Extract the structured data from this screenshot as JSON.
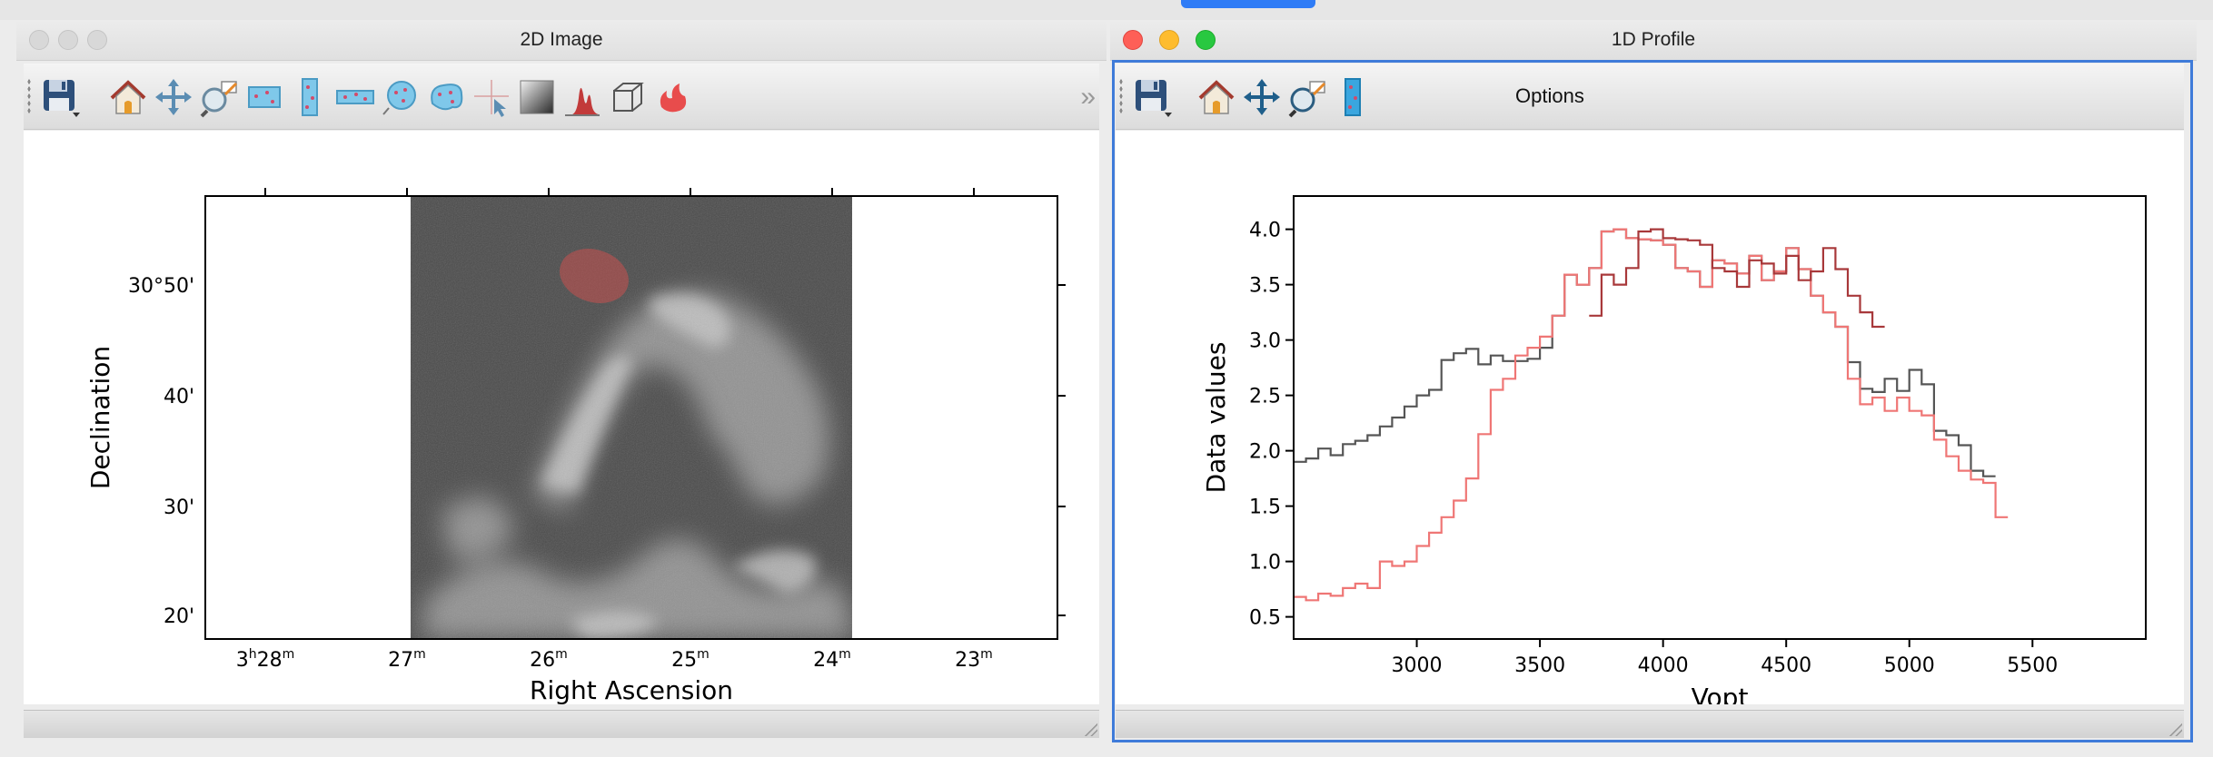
{
  "left_window": {
    "title": "2D Image",
    "toolbar_icons": [
      "save-icon",
      "home-icon",
      "pan-icon",
      "zoom-icon",
      "rectangle-roi-icon",
      "vertical-roi-icon",
      "horizontal-roi-icon",
      "circle-roi-icon",
      "polygon-roi-icon",
      "crosshair-icon",
      "contrast-icon",
      "histogram-icon",
      "cube-icon",
      "lasso-icon"
    ],
    "overflow_label": "»",
    "image_plot": {
      "xlabel": "Right Ascension",
      "ylabel": "Declination",
      "x_ticks": [
        {
          "h": "3",
          "hsup": "h",
          "m": "28",
          "msup": "m"
        },
        {
          "h": "",
          "hsup": "",
          "m": "27",
          "msup": "m"
        },
        {
          "h": "",
          "hsup": "",
          "m": "26",
          "msup": "m"
        },
        {
          "h": "",
          "hsup": "",
          "m": "25",
          "msup": "m"
        },
        {
          "h": "",
          "hsup": "",
          "m": "24",
          "msup": "m"
        },
        {
          "h": "",
          "hsup": "",
          "m": "23",
          "msup": "m"
        }
      ],
      "y_ticks": [
        "30°50'",
        "40'",
        "30'",
        "20'"
      ],
      "selection_color": "#e0504e"
    }
  },
  "right_window": {
    "title": "1D Profile",
    "toolbar_icons": [
      "save-icon",
      "home-icon",
      "pan-icon",
      "zoom-icon",
      "vertical-roi-icon"
    ],
    "options_label": "Options"
  },
  "chart_data": {
    "type": "line",
    "xlabel": "Vopt",
    "ylabel": "Data values",
    "xlim": [
      2500,
      5960
    ],
    "ylim": [
      0.3,
      4.3
    ],
    "x_ticks": [
      3000,
      3500,
      4000,
      4500,
      5000,
      5500
    ],
    "y_ticks": [
      "0.5",
      "1.0",
      "1.5",
      "2.0",
      "2.5",
      "3.0",
      "3.5",
      "4.0"
    ],
    "step_start": 2500,
    "step_width": 50,
    "series": [
      {
        "color": "#555555",
        "values": [
          1.9,
          1.93,
          2.02,
          1.96,
          2.06,
          2.09,
          2.14,
          2.22,
          2.3,
          2.4,
          2.5,
          2.55,
          2.82,
          2.88,
          2.92,
          2.78,
          2.86,
          2.81,
          2.81,
          2.83,
          2.93,
          3.22,
          3.59,
          3.5,
          3.65,
          3.98,
          4.0,
          3.92,
          3.91,
          3.9,
          3.86,
          3.65,
          3.62,
          3.48,
          3.72,
          3.69,
          3.6,
          3.76,
          3.54,
          3.62,
          3.83,
          3.64,
          3.4,
          3.25,
          3.12,
          2.8,
          2.56,
          2.53,
          2.65,
          2.54,
          2.73,
          2.6,
          2.18,
          2.14,
          2.05,
          1.82,
          1.77
        ]
      },
      {
        "color": "#ef7675",
        "values": [
          0.68,
          0.65,
          0.71,
          0.69,
          0.76,
          0.8,
          0.76,
          1.0,
          0.96,
          1.0,
          1.14,
          1.26,
          1.4,
          1.55,
          1.75,
          2.15,
          2.55,
          2.65,
          2.86,
          2.93,
          3.03,
          3.22,
          3.59,
          3.5,
          3.65,
          3.98,
          4.0,
          3.92,
          3.91,
          3.9,
          3.86,
          3.65,
          3.62,
          3.48,
          3.72,
          3.69,
          3.6,
          3.76,
          3.54,
          3.62,
          3.83,
          3.64,
          3.4,
          3.25,
          3.12,
          2.65,
          2.42,
          2.48,
          2.36,
          2.48,
          2.36,
          2.32,
          2.1,
          1.95,
          1.82,
          1.74,
          1.71,
          1.4
        ]
      },
      {
        "color": "#a8383a",
        "values": [
          3.22,
          3.59,
          3.5,
          3.65,
          3.98,
          4.0,
          3.92,
          3.91,
          3.9,
          3.86,
          3.65,
          3.62,
          3.48,
          3.72,
          3.69,
          3.6,
          3.76,
          3.54,
          3.62,
          3.83,
          3.64,
          3.4,
          3.25,
          3.12
        ],
        "start_x": 3700
      }
    ]
  }
}
